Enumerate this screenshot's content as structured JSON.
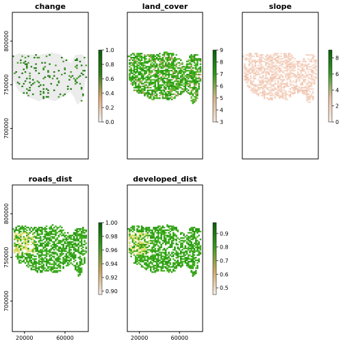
{
  "chart_data": {
    "type": "heatmap",
    "panels": [
      {
        "title": "change",
        "legend": {
          "ticks": [
            "1.0",
            "0.8",
            "0.6",
            "0.4",
            "0.2",
            "0.0"
          ],
          "range": [
            0,
            1
          ],
          "colors": [
            "#f2f2f2",
            "#e0a878",
            "#2e7d1a",
            "#0b5e0b"
          ]
        },
        "fill": "gray-with-green-patches"
      },
      {
        "title": "land_cover",
        "legend": {
          "ticks": [
            "9",
            "8",
            "7",
            "6",
            "5",
            "4",
            "3"
          ],
          "range": [
            3,
            9
          ],
          "colors": [
            "#f5e6dc",
            "#d7b58c",
            "#2e9a1a",
            "#0b5e0b"
          ]
        },
        "fill": "green"
      },
      {
        "title": "slope",
        "legend": {
          "ticks": [
            "8",
            "6",
            "4",
            "2",
            "0"
          ],
          "range": [
            0,
            9
          ],
          "colors": [
            "#fbeee8",
            "#e7c3a8",
            "#3a9a2a",
            "#0b5e0b"
          ]
        },
        "fill": "pink"
      },
      {
        "title": "roads_dist",
        "legend": {
          "ticks": [
            "1.00",
            "0.98",
            "0.96",
            "0.94",
            "0.92",
            "0.90"
          ],
          "range": [
            0.895,
            1.0
          ],
          "colors": [
            "#f5f0e8",
            "#c8a060",
            "#3a9a20",
            "#0b5e0b"
          ]
        },
        "fill": "green-yellow"
      },
      {
        "title": "developed_dist",
        "legend": {
          "ticks": [
            "0.9",
            "0.8",
            "0.7",
            "0.6",
            "0.5"
          ],
          "range": [
            0.45,
            0.98
          ],
          "colors": [
            "#f7f0e6",
            "#d0a868",
            "#3a9a20",
            "#0b5e0b"
          ]
        },
        "fill": "green-yellow"
      }
    ],
    "y_ticks": [
      "800000",
      "750000",
      "700000"
    ],
    "y_values": [
      800000,
      750000,
      700000
    ],
    "x_ticks": [
      "20000",
      "60000"
    ],
    "x_values": [
      20000,
      60000
    ]
  }
}
